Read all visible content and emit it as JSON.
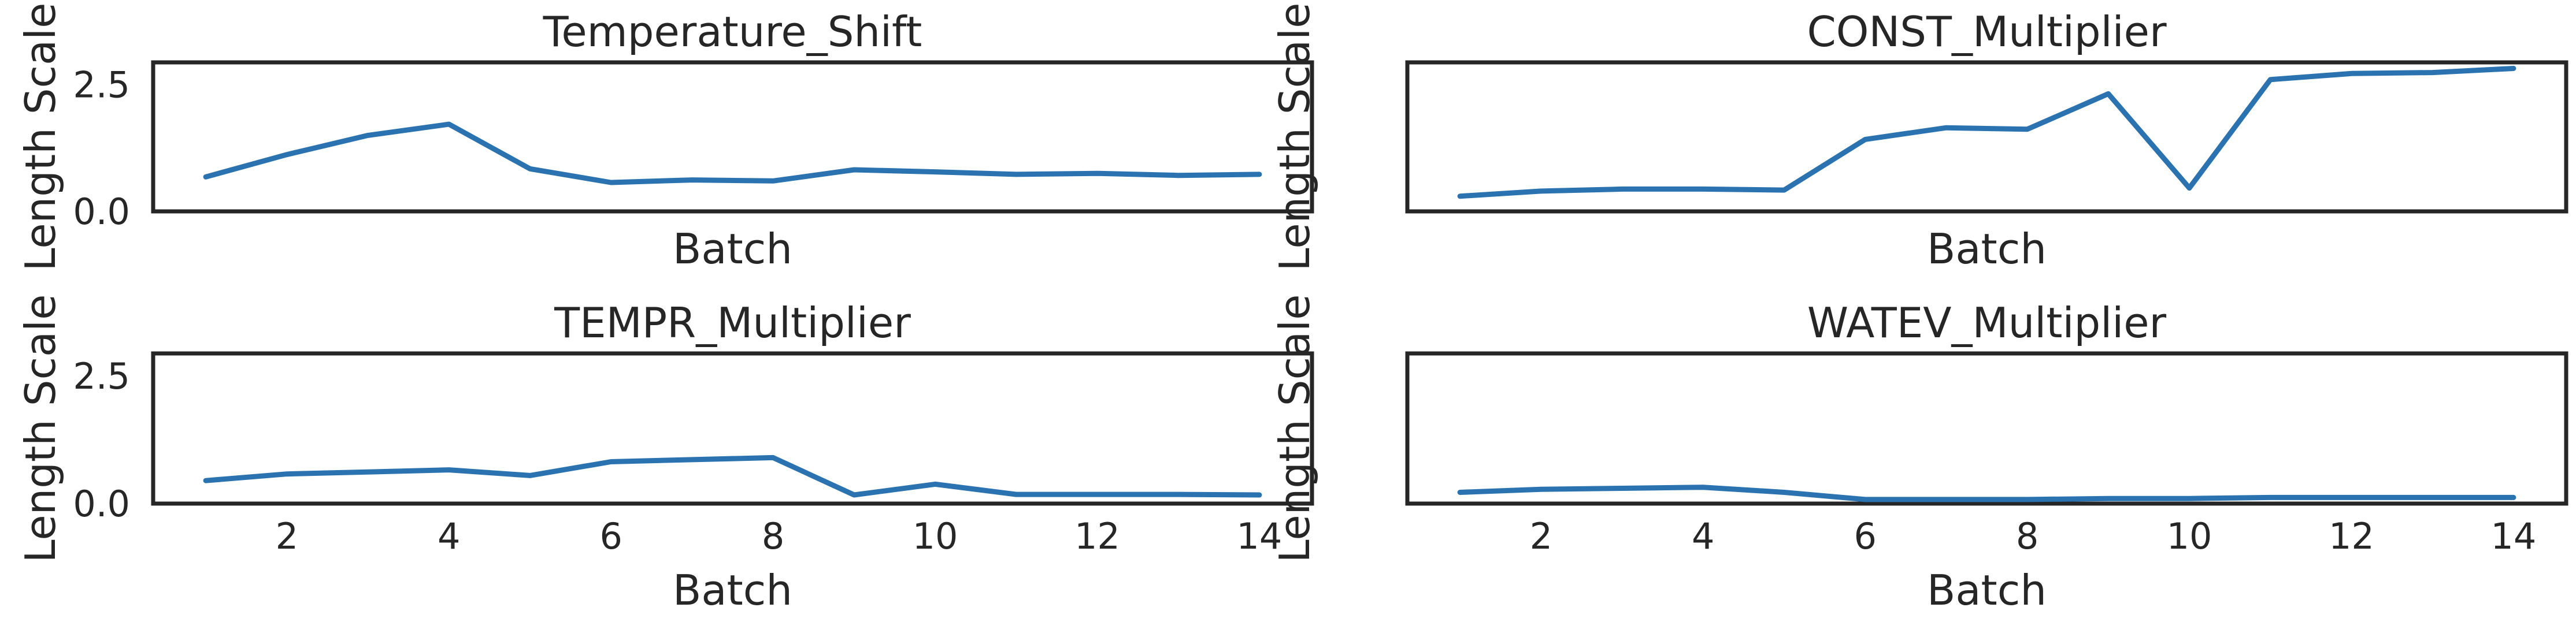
{
  "chart_data": [
    {
      "type": "line",
      "title": "Temperature_Shift",
      "xlabel": "Batch",
      "ylabel": "Length Scale",
      "x": [
        1,
        2,
        3,
        4,
        5,
        6,
        7,
        8,
        9,
        10,
        11,
        12,
        13,
        14
      ],
      "series": [
        {
          "values": [
            0.68,
            1.12,
            1.5,
            1.72,
            0.84,
            0.57,
            0.62,
            0.6,
            0.82,
            0.78,
            0.73,
            0.75,
            0.71,
            0.73
          ]
        }
      ],
      "ylim": [
        0,
        2.94
      ],
      "yticks": [
        0.0,
        2.5
      ],
      "xticks": [],
      "grid": false,
      "color": "#2a73b0"
    },
    {
      "type": "line",
      "title": "CONST_Multiplier",
      "xlabel": "Batch",
      "ylabel": "Length Scale",
      "x": [
        1,
        2,
        3,
        4,
        5,
        6,
        7,
        8,
        9,
        10,
        11,
        12,
        13,
        14
      ],
      "series": [
        {
          "values": [
            0.3,
            0.4,
            0.44,
            0.44,
            0.42,
            1.42,
            1.65,
            1.62,
            2.32,
            0.46,
            2.6,
            2.72,
            2.74,
            2.82
          ]
        }
      ],
      "ylim": [
        0,
        2.94
      ],
      "yticks": [],
      "xticks": [],
      "grid": false,
      "color": "#2a73b0"
    },
    {
      "type": "line",
      "title": "TEMPR_Multiplier",
      "xlabel": "Batch",
      "ylabel": "Length Scale",
      "x": [
        1,
        2,
        3,
        4,
        5,
        6,
        7,
        8,
        9,
        10,
        11,
        12,
        13,
        14
      ],
      "series": [
        {
          "values": [
            0.45,
            0.58,
            0.62,
            0.66,
            0.55,
            0.82,
            0.86,
            0.9,
            0.17,
            0.38,
            0.18,
            0.18,
            0.18,
            0.17
          ]
        }
      ],
      "ylim": [
        0,
        2.94
      ],
      "yticks": [
        0.0,
        2.5
      ],
      "xticks": [
        2,
        4,
        6,
        8,
        10,
        12,
        14
      ],
      "grid": false,
      "color": "#2a73b0"
    },
    {
      "type": "line",
      "title": "WATEV_Multiplier",
      "xlabel": "Batch",
      "ylabel": "Length Scale",
      "x": [
        1,
        2,
        3,
        4,
        5,
        6,
        7,
        8,
        9,
        10,
        11,
        12,
        13,
        14
      ],
      "series": [
        {
          "values": [
            0.22,
            0.28,
            0.3,
            0.32,
            0.22,
            0.08,
            0.08,
            0.08,
            0.1,
            0.1,
            0.12,
            0.12,
            0.12,
            0.12
          ]
        }
      ],
      "ylim": [
        0,
        2.94
      ],
      "yticks": [],
      "xticks": [
        2,
        4,
        6,
        8,
        10,
        12,
        14
      ],
      "grid": false,
      "color": "#2a73b0"
    }
  ]
}
